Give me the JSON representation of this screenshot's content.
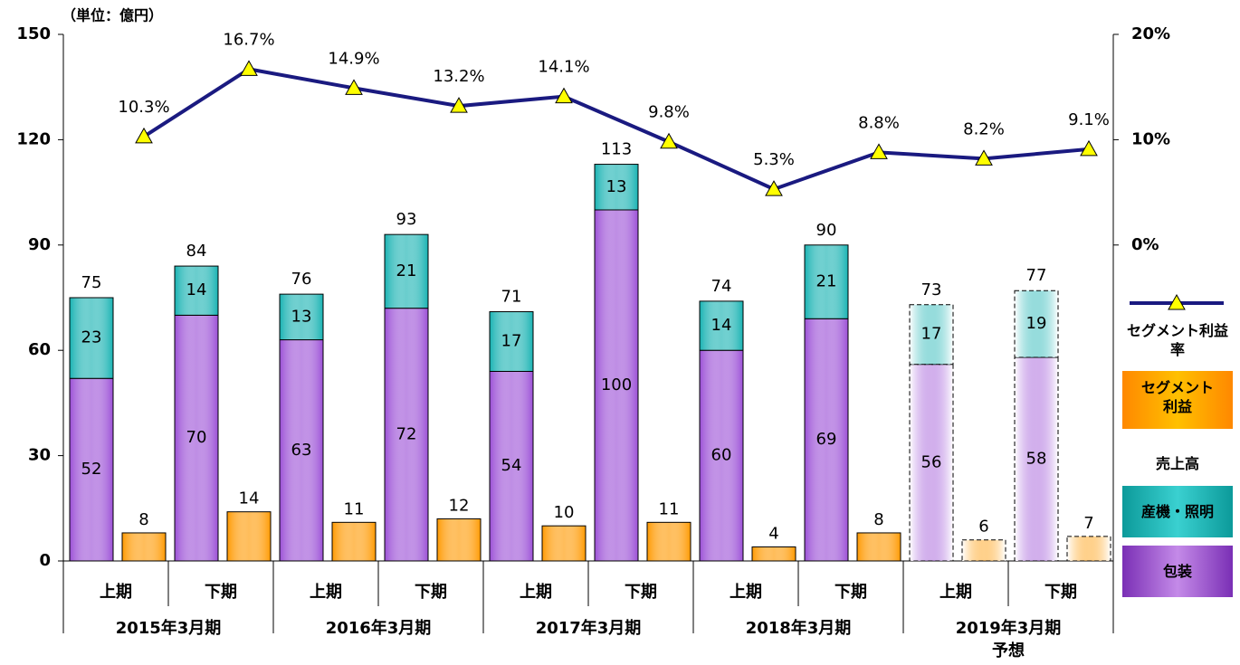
{
  "chart_data": {
    "type": "bar",
    "unit_label": "（単位：億円）",
    "categories": [
      "上期",
      "下期",
      "上期",
      "下期",
      "上期",
      "下期",
      "上期",
      "下期",
      "上期",
      "下期"
    ],
    "groups": [
      "2015年3月期",
      "2016年3月期",
      "2017年3月期",
      "2018年3月期",
      "2019年3月期"
    ],
    "group_note": "予想",
    "forecast": [
      false,
      false,
      false,
      false,
      false,
      false,
      false,
      false,
      true,
      true
    ],
    "series": [
      {
        "name": "包装",
        "color": "#9b4fd6",
        "values": [
          52,
          70,
          63,
          72,
          54,
          100,
          60,
          69,
          56,
          58
        ]
      },
      {
        "name": "産機・照明",
        "color": "#17b2b2",
        "values": [
          23,
          14,
          13,
          21,
          17,
          13,
          14,
          21,
          17,
          19
        ]
      },
      {
        "name": "セグメント利益",
        "color": "#ff9900",
        "values": [
          8,
          14,
          11,
          12,
          10,
          11,
          4,
          8,
          6,
          7
        ]
      },
      {
        "name": "セグメント利益率",
        "color": "#1a1a80",
        "marker_color": "#ffff00",
        "axis": "y2",
        "values": [
          10.3,
          16.7,
          14.9,
          13.2,
          14.1,
          9.8,
          5.3,
          8.8,
          8.2,
          9.1
        ],
        "value_labels": [
          "10.3%",
          "16.7%",
          "14.9%",
          "13.2%",
          "14.1%",
          "9.8%",
          "5.3%",
          "8.8%",
          "8.2%",
          "9.1%"
        ]
      }
    ],
    "totals": [
      75,
      84,
      76,
      93,
      71,
      113,
      74,
      90,
      73,
      77
    ],
    "legend_header": "売上高",
    "ylim": [
      0,
      150
    ],
    "yticks": [
      0,
      30,
      60,
      90,
      120,
      150
    ],
    "y2lim": [
      -30,
      20
    ],
    "y2ticks": [
      {
        "value": 0,
        "label": "0%"
      },
      {
        "value": 10,
        "label": "10%"
      },
      {
        "value": 20,
        "label": "20%"
      }
    ]
  }
}
